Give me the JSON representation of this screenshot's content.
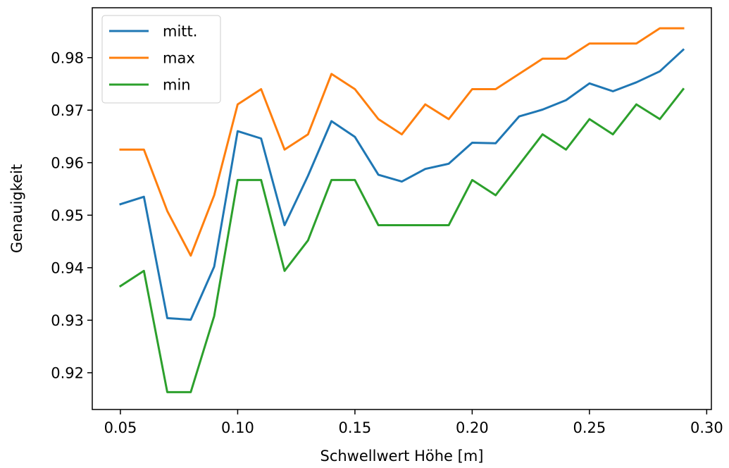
{
  "chart_data": {
    "type": "line",
    "title": "",
    "xlabel": "Schwellwert Höhe [m]",
    "ylabel": "Genauigkeit",
    "xlim": [
      0.038,
      0.302
    ],
    "ylim": [
      0.913,
      0.9895
    ],
    "grid": false,
    "legend_position": "top-left",
    "x": [
      0.05,
      0.06,
      0.07,
      0.08,
      0.09,
      0.1,
      0.11,
      0.12,
      0.13,
      0.14,
      0.15,
      0.16,
      0.17,
      0.18,
      0.19,
      0.2,
      0.21,
      0.22,
      0.23,
      0.24,
      0.25,
      0.26,
      0.27,
      0.28,
      0.29
    ],
    "xticks": [
      "0.05",
      "0.10",
      "0.15",
      "0.20",
      "0.25",
      "0.30"
    ],
    "yticks": [
      "0.92",
      "0.93",
      "0.94",
      "0.95",
      "0.96",
      "0.97",
      "0.98"
    ],
    "series": [
      {
        "name": "mitt.",
        "color": "#1f77b4",
        "values": [
          0.9521,
          0.9535,
          0.9304,
          0.9301,
          0.9402,
          0.966,
          0.9646,
          0.9481,
          0.9575,
          0.9679,
          0.9649,
          0.9577,
          0.9564,
          0.9588,
          0.9598,
          0.9638,
          0.9637,
          0.9688,
          0.9701,
          0.9719,
          0.9751,
          0.9736,
          0.9753,
          0.9774,
          0.9815
        ]
      },
      {
        "name": "max",
        "color": "#ff7f0e",
        "values": [
          0.9625,
          0.9625,
          0.9508,
          0.9423,
          0.9538,
          0.9711,
          0.974,
          0.9625,
          0.9654,
          0.9769,
          0.974,
          0.9683,
          0.9654,
          0.9711,
          0.9683,
          0.974,
          0.974,
          0.9769,
          0.9798,
          0.9798,
          0.9827,
          0.9827,
          0.9827,
          0.9856,
          0.9856
        ]
      },
      {
        "name": "min",
        "color": "#2ca02c",
        "values": [
          0.9365,
          0.9394,
          0.9163,
          0.9163,
          0.9308,
          0.9567,
          0.9567,
          0.9394,
          0.9452,
          0.9567,
          0.9567,
          0.9481,
          0.9481,
          0.9481,
          0.9481,
          0.9567,
          0.9538,
          0.9596,
          0.9654,
          0.9625,
          0.9683,
          0.9654,
          0.9711,
          0.9683,
          0.974
        ]
      }
    ]
  }
}
